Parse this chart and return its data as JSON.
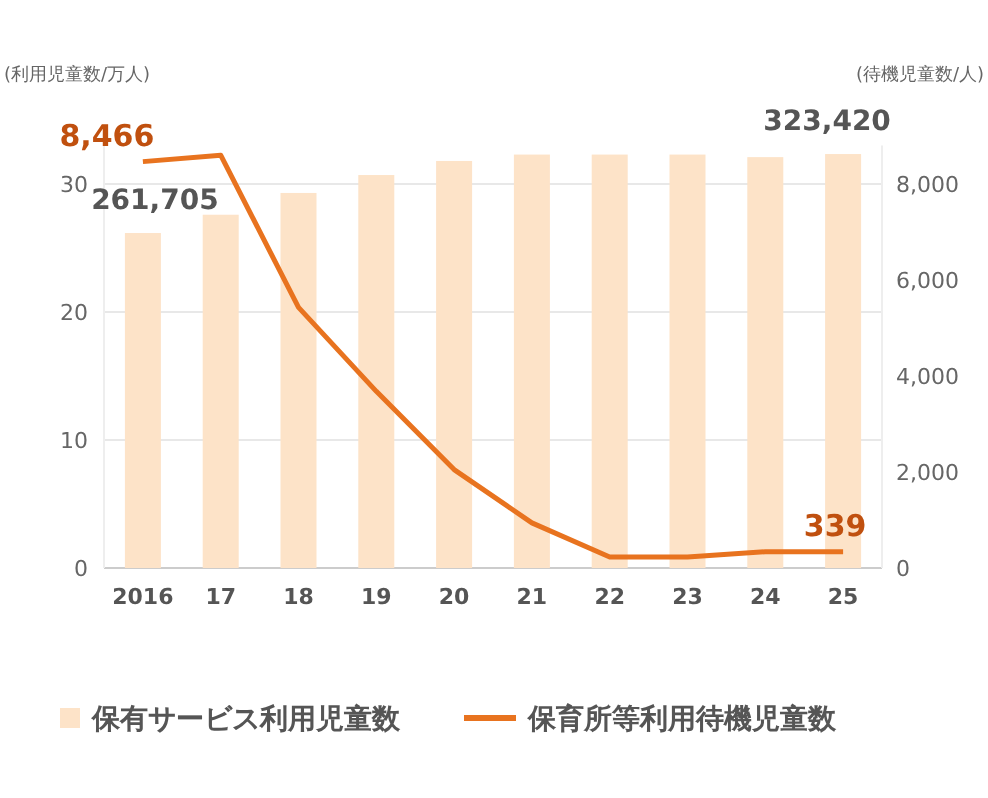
{
  "chart_data": {
    "type": "bar",
    "ylabel": "(利用児童数/万人)",
    "y2label": "(待機児童数/人)",
    "categories": [
      "2016",
      "17",
      "18",
      "19",
      "20",
      "21",
      "22",
      "23",
      "24",
      "25"
    ],
    "series": [
      {
        "name": "保有サービス利用児童数",
        "color": "#fde3c8",
        "values": [
          26.17,
          27.6,
          29.3,
          30.7,
          31.8,
          32.3,
          32.3,
          32.3,
          32.1,
          32.34
        ]
      },
      {
        "name": "保育所等利用待機児童数",
        "type": "line",
        "axis": "y2",
        "color": "#e8731f",
        "values": [
          8466,
          8600,
          5430,
          3680,
          2050,
          940,
          230,
          230,
          340,
          339
        ],
        "value_labels": [
          "8,466",
          null,
          null,
          null,
          null,
          null,
          null,
          null,
          null,
          "339"
        ]
      }
    ],
    "ylim": [
      0,
      33
    ],
    "yticks": [
      0,
      10,
      20,
      30
    ],
    "y2lim": [
      0,
      8800
    ],
    "y2ticks": [
      {
        "value": 0,
        "label": "0"
      },
      {
        "value": 2000,
        "label": "2,000"
      },
      {
        "value": 4000,
        "label": "4,000"
      },
      {
        "value": 6000,
        "label": "6,000"
      },
      {
        "value": 8000,
        "label": "8,000"
      }
    ],
    "annotations": [
      {
        "text": "261,705",
        "x": "2016",
        "y": 26.17
      },
      {
        "text": "323,420",
        "x": "25",
        "y": 32.34
      }
    ],
    "grid": "y",
    "legend": "bottom"
  }
}
